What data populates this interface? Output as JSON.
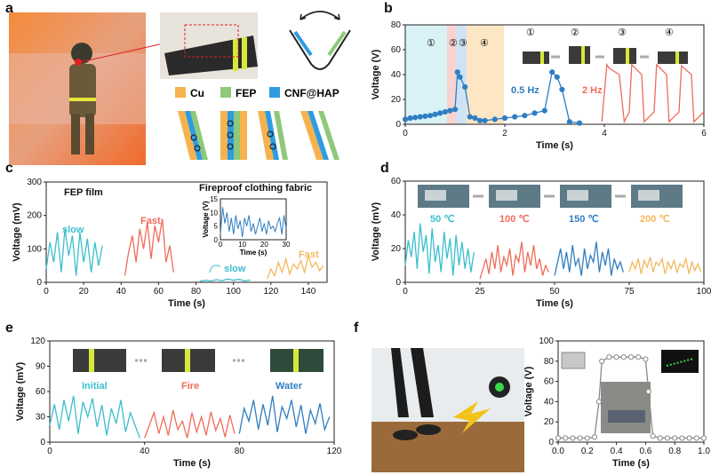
{
  "panel_labels": {
    "a": "a",
    "b": "b",
    "c": "c",
    "d": "d",
    "e": "e",
    "f": "f"
  },
  "legend_a": {
    "cu": "Cu",
    "fep": "FEP",
    "cnf": "CNF@HAP"
  },
  "colors": {
    "cu": "#f5b350",
    "fep": "#8ec97a",
    "cnf": "#2f9be0",
    "teal": "#3bbfce",
    "red": "#ef6c5a",
    "blue": "#2f7ec2",
    "orange": "#f3b95c",
    "grey": "#888888"
  },
  "chart_data": [
    {
      "id": "b",
      "type": "line",
      "xlabel": "Time (s)",
      "ylabel": "Voltage (V)",
      "xlim": [
        0,
        6
      ],
      "ylim": [
        0,
        80
      ],
      "xticks": [
        0,
        2,
        4,
        6
      ],
      "yticks": [
        0,
        20,
        40,
        60,
        80
      ],
      "annotations": [
        "0.5 Hz",
        "2 Hz"
      ],
      "stage_markers": [
        "①",
        "②",
        "③",
        "④"
      ],
      "series": [
        {
          "color": "#2f7ec2",
          "x": [
            0,
            0.1,
            0.2,
            0.3,
            0.4,
            0.5,
            0.6,
            0.7,
            0.8,
            0.9,
            1.0,
            1.05,
            1.1,
            1.2,
            1.3,
            1.4,
            1.5,
            1.6,
            1.8,
            2.0,
            2.2,
            2.4,
            2.6,
            2.8,
            2.95,
            3.05,
            3.15,
            3.3,
            3.5
          ],
          "y": [
            4,
            5,
            5.5,
            6,
            6.5,
            7,
            8,
            9,
            10,
            11,
            12,
            42,
            38,
            30,
            6,
            5,
            3,
            3,
            4,
            5,
            6,
            7,
            9,
            11,
            42,
            38,
            28,
            2,
            1
          ]
        },
        {
          "color": "#ef6c5a",
          "x": [
            3.95,
            4.05,
            4.1,
            4.3,
            4.4,
            4.5,
            4.55,
            4.75,
            4.8,
            5.0,
            5.05,
            5.25,
            5.3,
            5.5,
            5.55,
            5.75,
            5.8,
            6.0
          ],
          "y": [
            2,
            48,
            45,
            40,
            2,
            10,
            48,
            40,
            2,
            10,
            48,
            40,
            2,
            10,
            47,
            40,
            2,
            10
          ]
        }
      ]
    },
    {
      "id": "c",
      "type": "line",
      "xlabel": "Time (s)",
      "ylabel": "Voltage (mV)",
      "xlim": [
        0,
        150
      ],
      "ylim": [
        0,
        300
      ],
      "xticks": [
        0,
        20,
        40,
        60,
        80,
        100,
        120,
        140
      ],
      "yticks": [
        0,
        100,
        200,
        300
      ],
      "annotations": [
        "FEP film",
        "Fireproof clothing fabric",
        "slow",
        "Fast",
        "slow",
        "Fast"
      ],
      "series": [
        {
          "name": "slow",
          "color": "#3bbfce",
          "x": [
            0,
            2,
            4,
            6,
            8,
            10,
            12,
            14,
            16,
            18,
            20,
            22,
            24,
            26,
            28,
            30
          ],
          "y": [
            40,
            120,
            60,
            150,
            30,
            160,
            80,
            140,
            20,
            150,
            60,
            130,
            30,
            120,
            50,
            110
          ]
        },
        {
          "name": "Fast",
          "color": "#ef6c5a",
          "x": [
            42,
            44,
            46,
            48,
            50,
            52,
            54,
            56,
            58,
            60,
            62,
            64,
            66,
            68
          ],
          "y": [
            20,
            90,
            140,
            60,
            160,
            100,
            180,
            70,
            170,
            120,
            190,
            60,
            110,
            30
          ]
        },
        {
          "name": "slow",
          "color": "#3bbfce",
          "x": [
            82,
            85,
            88,
            91,
            94,
            97,
            100,
            103,
            106,
            109
          ],
          "y": [
            3,
            6,
            4,
            8,
            5,
            10,
            6,
            9,
            4,
            7
          ]
        },
        {
          "name": "Fast",
          "color": "#f3b95c",
          "x": [
            118,
            120,
            122,
            124,
            126,
            128,
            130,
            132,
            134,
            136,
            138,
            140,
            142,
            144,
            146,
            148
          ],
          "y": [
            10,
            40,
            20,
            60,
            30,
            70,
            25,
            55,
            40,
            65,
            30,
            80,
            45,
            60,
            35,
            50
          ]
        }
      ],
      "inset": {
        "xlabel": "Time (s)",
        "ylabel": "Voltage (V)",
        "xlim": [
          0,
          30
        ],
        "ylim": [
          0,
          15
        ],
        "xticks": [
          0,
          10,
          20,
          30
        ],
        "yticks": [
          0,
          5,
          10,
          15
        ],
        "x": [
          0,
          1,
          2,
          3,
          4,
          5,
          6,
          7,
          8,
          9,
          10,
          11,
          12,
          13,
          14,
          15,
          16,
          17,
          18,
          19,
          20,
          21,
          22,
          23,
          24,
          25,
          26,
          27,
          28,
          29,
          30
        ],
        "y": [
          2,
          12,
          6,
          10,
          3,
          8,
          2,
          9,
          4,
          7,
          1,
          8,
          5,
          9,
          3,
          6,
          2,
          5,
          8,
          3,
          6,
          2,
          7,
          4,
          5,
          3,
          6,
          8,
          2,
          9,
          4
        ]
      }
    },
    {
      "id": "d",
      "type": "line",
      "xlabel": "Time (s)",
      "ylabel": "Voltage (mV)",
      "xlim": [
        0,
        100
      ],
      "ylim": [
        0,
        60
      ],
      "xticks": [
        0,
        25,
        50,
        75,
        100
      ],
      "yticks": [
        0,
        20,
        40,
        60
      ],
      "annotations": [
        "50 ℃",
        "100 ℃",
        "150 ℃",
        "200 ℃"
      ],
      "series": [
        {
          "name": "50 ℃",
          "color": "#3bbfce",
          "x": [
            0,
            1,
            2,
            3,
            4,
            5,
            6,
            7,
            8,
            9,
            10,
            11,
            12,
            13,
            14,
            15,
            16,
            17,
            18,
            19,
            20,
            21,
            22,
            23
          ],
          "y": [
            10,
            25,
            15,
            30,
            8,
            35,
            18,
            28,
            5,
            32,
            12,
            22,
            6,
            30,
            14,
            26,
            4,
            28,
            10,
            24,
            8,
            20,
            6,
            18
          ]
        },
        {
          "name": "100 ℃",
          "color": "#ef6c5a",
          "x": [
            25,
            26,
            27,
            28,
            29,
            30,
            31,
            32,
            33,
            34,
            35,
            36,
            37,
            38,
            39,
            40,
            41,
            42,
            43,
            44,
            45,
            46,
            47,
            48
          ],
          "y": [
            2,
            8,
            14,
            5,
            18,
            8,
            22,
            6,
            15,
            10,
            20,
            4,
            16,
            12,
            24,
            6,
            18,
            10,
            22,
            8,
            14,
            4,
            10,
            6
          ]
        },
        {
          "name": "150 ℃",
          "color": "#2f7ec2",
          "x": [
            50,
            51,
            52,
            53,
            54,
            55,
            56,
            57,
            58,
            59,
            60,
            61,
            62,
            63,
            64,
            65,
            66,
            67,
            68,
            69,
            70,
            71,
            72,
            73
          ],
          "y": [
            4,
            12,
            20,
            8,
            18,
            6,
            22,
            10,
            14,
            4,
            20,
            8,
            16,
            12,
            24,
            6,
            18,
            10,
            20,
            4,
            14,
            8,
            12,
            6
          ]
        },
        {
          "name": "200 ℃",
          "color": "#f3b95c",
          "x": [
            75,
            76,
            77,
            78,
            79,
            80,
            81,
            82,
            83,
            84,
            85,
            86,
            87,
            88,
            89,
            90,
            91,
            92,
            93,
            94,
            95,
            96,
            97,
            98,
            99
          ],
          "y": [
            6,
            12,
            8,
            14,
            5,
            13,
            9,
            15,
            6,
            12,
            10,
            14,
            5,
            12,
            8,
            13,
            6,
            11,
            9,
            14,
            5,
            12,
            7,
            11,
            6
          ]
        }
      ]
    },
    {
      "id": "e",
      "type": "line",
      "xlabel": "Time (s)",
      "ylabel": "Voltage (mV)",
      "xlim": [
        0,
        120
      ],
      "ylim": [
        0,
        120
      ],
      "xticks": [
        0,
        40,
        80,
        120
      ],
      "yticks": [
        0,
        30,
        60,
        90,
        120
      ],
      "annotations": [
        "Initial",
        "Fire",
        "Water"
      ],
      "series": [
        {
          "name": "Initial",
          "color": "#3bbfce",
          "x": [
            0,
            2,
            4,
            6,
            8,
            10,
            12,
            14,
            16,
            18,
            20,
            22,
            24,
            26,
            28,
            30,
            32,
            34,
            36,
            38
          ],
          "y": [
            20,
            45,
            15,
            50,
            25,
            55,
            10,
            48,
            30,
            52,
            18,
            44,
            8,
            40,
            22,
            50,
            12,
            35,
            20,
            5
          ]
        },
        {
          "name": "Fire",
          "color": "#ef6c5a",
          "x": [
            40,
            42,
            44,
            46,
            48,
            50,
            52,
            54,
            56,
            58,
            60,
            62,
            64,
            66,
            68,
            70,
            72,
            74,
            76,
            78
          ],
          "y": [
            5,
            20,
            35,
            10,
            30,
            8,
            38,
            15,
            25,
            5,
            35,
            12,
            30,
            8,
            36,
            14,
            28,
            6,
            32,
            10
          ]
        },
        {
          "name": "Water",
          "color": "#2f7ec2",
          "x": [
            80,
            82,
            84,
            86,
            88,
            90,
            92,
            94,
            96,
            98,
            100,
            102,
            104,
            106,
            108,
            110,
            112,
            114,
            116,
            118
          ],
          "y": [
            10,
            40,
            25,
            50,
            15,
            45,
            20,
            55,
            12,
            42,
            28,
            50,
            18,
            44,
            10,
            38,
            22,
            46,
            15,
            30
          ]
        }
      ]
    },
    {
      "id": "f",
      "type": "line",
      "xlabel": "Time (s)",
      "ylabel": "Voltage (V)",
      "xlim": [
        0,
        1.0
      ],
      "ylim": [
        0,
        100
      ],
      "xticks": [
        0.0,
        0.2,
        0.4,
        0.6,
        0.8,
        1.0
      ],
      "yticks": [
        0,
        20,
        40,
        60,
        80,
        100
      ],
      "series": [
        {
          "color": "#888888",
          "x": [
            0,
            0.05,
            0.1,
            0.15,
            0.2,
            0.25,
            0.28,
            0.3,
            0.35,
            0.4,
            0.45,
            0.5,
            0.55,
            0.6,
            0.62,
            0.65,
            0.7,
            0.75,
            0.8,
            0.85,
            0.9,
            0.95,
            1.0
          ],
          "y": [
            4,
            4,
            4,
            4,
            4,
            5,
            40,
            80,
            84,
            84,
            84,
            84,
            84,
            82,
            50,
            6,
            4,
            4,
            4,
            4,
            4,
            4,
            4
          ]
        }
      ]
    }
  ]
}
